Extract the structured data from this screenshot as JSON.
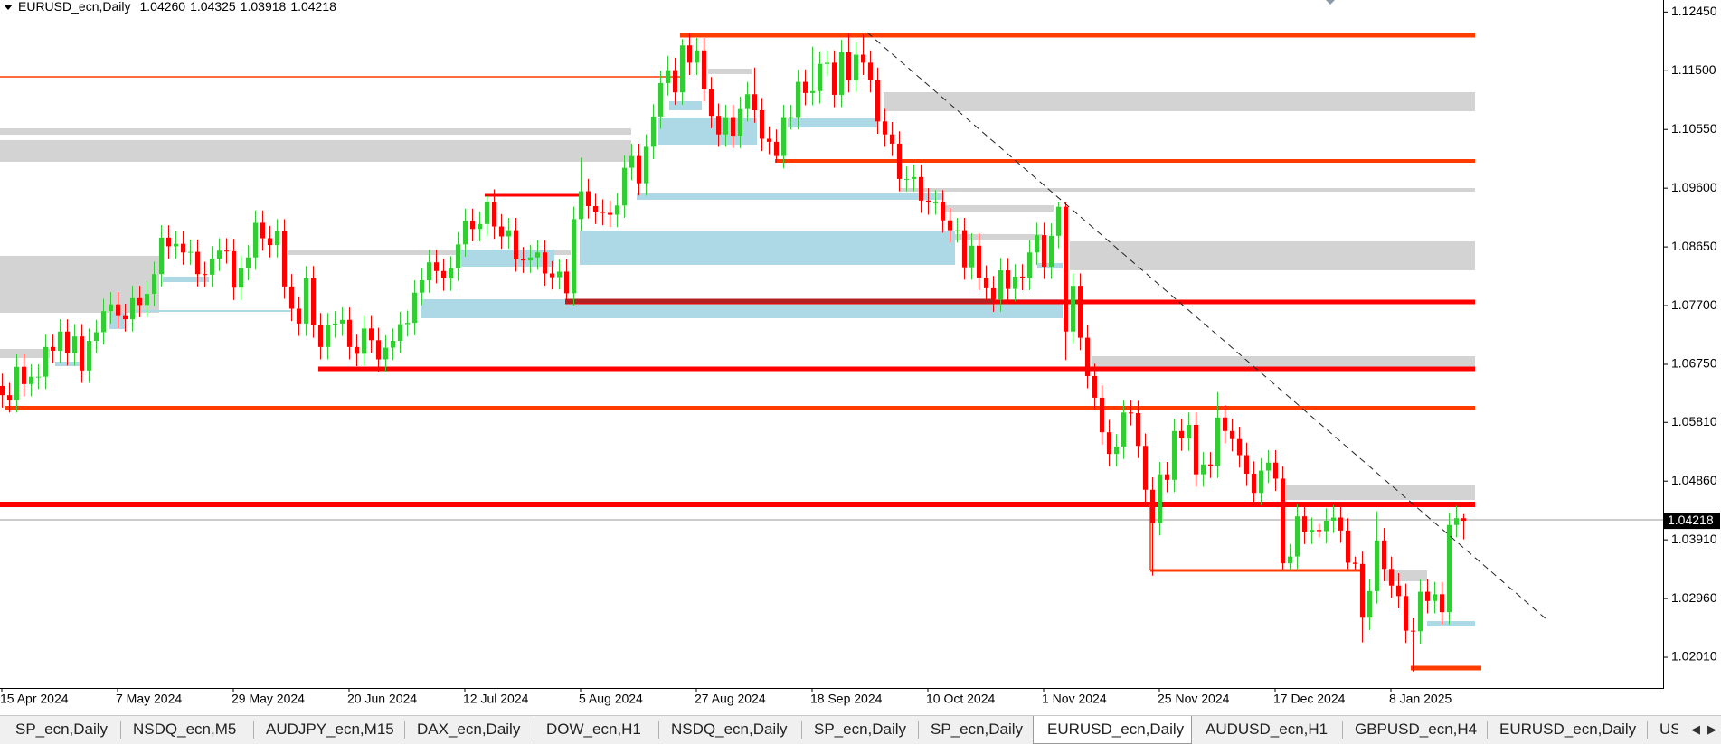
{
  "chart_data": {
    "type": "candlestick",
    "symbol": "EURUSD_ecn,Daily",
    "last_bar_labels": [
      "1.04260",
      "1.04325",
      "1.03918",
      "1.04218"
    ],
    "up_color": "#32cd32",
    "down_color": "#ff0000",
    "ylim": [
      1.01513,
      1.12645
    ],
    "yticks": [
      {
        "value": 1.1245,
        "label": "1.12450"
      },
      {
        "value": 1.115,
        "label": "1.11500"
      },
      {
        "value": 1.1055,
        "label": "1.10550"
      },
      {
        "value": 1.096,
        "label": "1.09600"
      },
      {
        "value": 1.0865,
        "label": "1.08650"
      },
      {
        "value": 1.077,
        "label": "1.07700"
      },
      {
        "value": 1.0675,
        "label": "1.06750"
      },
      {
        "value": 1.0581,
        "label": "1.05810"
      },
      {
        "value": 1.0486,
        "label": "1.04860"
      },
      {
        "value": 1.0391,
        "label": "1.03910"
      },
      {
        "value": 1.0296,
        "label": "1.02960"
      },
      {
        "value": 1.0201,
        "label": "1.02010"
      }
    ],
    "categories": [
      "15 Apr 2024",
      null,
      null,
      null,
      null,
      null,
      null,
      null,
      null,
      null,
      null,
      null,
      null,
      null,
      null,
      null,
      "7 May 2024",
      null,
      null,
      null,
      null,
      null,
      null,
      null,
      null,
      null,
      null,
      null,
      null,
      null,
      null,
      null,
      "29 May 2024",
      null,
      null,
      null,
      null,
      null,
      null,
      null,
      null,
      null,
      null,
      null,
      null,
      null,
      null,
      null,
      "20 Jun 2024",
      null,
      null,
      null,
      null,
      null,
      null,
      null,
      null,
      null,
      null,
      null,
      null,
      null,
      null,
      null,
      "12 Jul 2024",
      null,
      null,
      null,
      null,
      null,
      null,
      null,
      null,
      null,
      null,
      null,
      null,
      null,
      null,
      null,
      "5 Aug 2024",
      null,
      null,
      null,
      null,
      null,
      null,
      null,
      null,
      null,
      null,
      null,
      null,
      null,
      null,
      null,
      "27 Aug 2024",
      null,
      null,
      null,
      null,
      null,
      null,
      null,
      null,
      null,
      null,
      null,
      null,
      null,
      null,
      null,
      "18 Sep 2024",
      null,
      null,
      null,
      null,
      null,
      null,
      null,
      null,
      null,
      null,
      null,
      null,
      null,
      null,
      null,
      "10 Oct 2024",
      null,
      null,
      null,
      null,
      null,
      null,
      null,
      null,
      null,
      null,
      null,
      null,
      null,
      null,
      null,
      "1 Nov 2024",
      null,
      null,
      null,
      null,
      null,
      null,
      null,
      null,
      null,
      null,
      null,
      null,
      null,
      null,
      null,
      "25 Nov 2024",
      null,
      null,
      null,
      null,
      null,
      null,
      null,
      null,
      null,
      null,
      null,
      null,
      null,
      null,
      null,
      "17 Dec 2024",
      null,
      null,
      null,
      null,
      null,
      null,
      null,
      null,
      null,
      null,
      null,
      null,
      null,
      null,
      null,
      "8 Jan 2025",
      null,
      null,
      null,
      null,
      null,
      null,
      null,
      null,
      null,
      null
    ],
    "open": [
      1.064,
      1.0625,
      1.0617,
      1.0671,
      1.0643,
      1.0655,
      1.0655,
      1.0703,
      1.0697,
      1.0728,
      1.0693,
      1.072,
      1.0665,
      1.0713,
      1.0727,
      1.0761,
      1.0772,
      1.0753,
      1.0748,
      1.0782,
      1.0771,
      1.0789,
      1.0821,
      1.088,
      1.0866,
      1.087,
      1.0856,
      1.0857,
      1.0821,
      1.082,
      1.0846,
      1.0859,
      1.0858,
      1.0799,
      1.0831,
      1.0848,
      1.0904,
      1.0879,
      1.0868,
      1.089,
      1.0801,
      1.0765,
      1.0741,
      1.0814,
      1.0738,
      1.0703,
      1.0738,
      1.0741,
      1.0747,
      1.0703,
      1.0692,
      1.0733,
      1.0714,
      1.0683,
      1.0702,
      1.0713,
      1.074,
      1.0742,
      1.0791,
      1.0811,
      1.084,
      1.0826,
      1.0814,
      1.083,
      1.0869,
      1.0907,
      1.0894,
      1.0902,
      1.0938,
      1.0898,
      1.0882,
      1.0892,
      1.0845,
      1.0843,
      1.0848,
      1.0856,
      1.0822,
      1.0816,
      1.0825,
      1.079,
      1.091,
      1.0955,
      1.0931,
      1.0922,
      1.092,
      1.0917,
      1.0932,
      1.0993,
      1.1012,
      1.0968,
      1.1027,
      1.1076,
      1.113,
      1.1151,
      1.1115,
      1.1191,
      1.1163,
      1.1183,
      1.112,
      1.1077,
      1.1047,
      1.1075,
      1.1045,
      1.1088,
      1.1112,
      1.1086,
      1.104,
      1.1035,
      1.1012,
      1.1075,
      1.1075,
      1.1132,
      1.1114,
      1.1117,
      1.1161,
      1.1163,
      1.1111,
      1.118,
      1.1135,
      1.1176,
      1.1163,
      1.1135,
      1.1068,
      1.1047,
      1.1032,
      1.0975,
      1.0975,
      1.0978,
      1.094,
      1.0937,
      1.0937,
      1.0908,
      1.0892,
      1.0892,
      1.0832,
      1.0867,
      1.0815,
      1.0798,
      1.078,
      1.0827,
      1.0797,
      1.0817,
      1.0815,
      1.0856,
      1.0884,
      1.0833,
      1.0883,
      1.093,
      1.0728,
      1.0802,
      1.0718,
      1.0656,
      1.0621,
      1.0565,
      1.053,
      1.0542,
      1.0597,
      1.0596,
      1.0543,
      1.0472,
      1.0418,
      1.0497,
      1.0488,
      1.0567,
      1.0555,
      1.0577,
      1.0497,
      1.0513,
      1.0511,
      1.0589,
      1.0567,
      1.0554,
      1.0528,
      1.0498,
      1.0467,
      1.0503,
      1.0516,
      1.049,
      1.0353,
      1.0364,
      1.0429,
      1.0404,
      1.0407,
      1.0405,
      1.0422,
      1.0427,
      1.0406,
      1.0354,
      1.0352,
      1.0265,
      1.0308,
      1.039,
      1.0344,
      1.0317,
      1.03,
      1.0244,
      1.0243,
      1.0307,
      1.0292,
      1.0303,
      1.0274,
      1.0415,
      1.0426
    ],
    "high": [
      1.066,
      1.0645,
      1.0691,
      1.0691,
      1.0675,
      1.0675,
      1.0723,
      1.0723,
      1.0748,
      1.0748,
      1.074,
      1.074,
      1.0733,
      1.0747,
      1.0781,
      1.0792,
      1.0792,
      1.0773,
      1.0802,
      1.0802,
      1.0809,
      1.0841,
      1.09,
      1.09,
      1.089,
      1.089,
      1.0877,
      1.0877,
      1.0841,
      1.0866,
      1.0879,
      1.0879,
      1.0878,
      1.0851,
      1.0868,
      1.0924,
      1.0924,
      1.0899,
      1.091,
      1.091,
      1.0821,
      1.0785,
      1.0834,
      1.0834,
      1.0758,
      1.0758,
      1.0761,
      1.0767,
      1.0767,
      1.0723,
      1.0753,
      1.0753,
      1.0734,
      1.0722,
      1.0733,
      1.076,
      1.0762,
      1.0811,
      1.0831,
      1.086,
      1.086,
      1.0846,
      1.085,
      1.0889,
      1.0927,
      1.0927,
      1.0922,
      1.0948,
      1.0958,
      1.0918,
      1.0912,
      1.0912,
      1.0865,
      1.0868,
      1.0876,
      1.0876,
      1.0842,
      1.0845,
      1.0845,
      1.093,
      1.1009,
      1.0975,
      1.0951,
      1.0942,
      1.094,
      1.0952,
      1.1013,
      1.1032,
      1.1032,
      1.1047,
      1.1096,
      1.115,
      1.1174,
      1.1171,
      1.1201,
      1.1211,
      1.1203,
      1.1203,
      1.114,
      1.1097,
      1.1095,
      1.1095,
      1.1108,
      1.1132,
      1.1155,
      1.1106,
      1.106,
      1.1055,
      1.1095,
      1.1095,
      1.1152,
      1.1152,
      1.1189,
      1.1181,
      1.1183,
      1.1183,
      1.12,
      1.121,
      1.1196,
      1.1209,
      1.1183,
      1.1155,
      1.1088,
      1.1067,
      1.1052,
      1.0995,
      1.0998,
      1.0998,
      1.096,
      1.0957,
      1.0957,
      1.0928,
      1.0912,
      1.0912,
      1.0887,
      1.0887,
      1.0835,
      1.0818,
      1.0847,
      1.0847,
      1.0837,
      1.0837,
      1.0876,
      1.0904,
      1.0904,
      1.0903,
      1.0937,
      1.0937,
      1.0822,
      1.0822,
      1.0738,
      1.0676,
      1.0641,
      1.0585,
      1.0562,
      1.0617,
      1.0617,
      1.0616,
      1.0563,
      1.0492,
      1.0517,
      1.0517,
      1.0587,
      1.0587,
      1.0597,
      1.0597,
      1.0533,
      1.0533,
      1.063,
      1.0609,
      1.0587,
      1.0574,
      1.0548,
      1.0518,
      1.0523,
      1.0536,
      1.0536,
      1.051,
      1.0384,
      1.0449,
      1.0449,
      1.0427,
      1.0417,
      1.0442,
      1.0447,
      1.0447,
      1.0426,
      1.0364,
      1.0372,
      1.0328,
      1.0437,
      1.041,
      1.0364,
      1.0337,
      1.032,
      1.0264,
      1.0327,
      1.0327,
      1.0323,
      1.0323,
      1.0435,
      1.0446,
      1.04325
    ],
    "low": [
      1.0605,
      1.0597,
      1.0597,
      1.0623,
      1.0623,
      1.0635,
      1.0635,
      1.0677,
      1.0677,
      1.0673,
      1.0673,
      1.0645,
      1.0645,
      1.0693,
      1.0707,
      1.0741,
      1.0733,
      1.0728,
      1.0728,
      1.0751,
      1.0751,
      1.0769,
      1.0801,
      1.0846,
      1.0846,
      1.0836,
      1.0836,
      1.0801,
      1.08,
      1.08,
      1.0826,
      1.0838,
      1.0779,
      1.0779,
      1.0811,
      1.0828,
      1.0859,
      1.0848,
      1.0848,
      1.0781,
      1.0745,
      1.0721,
      1.0721,
      1.0718,
      1.0683,
      1.0683,
      1.0718,
      1.0721,
      1.0683,
      1.0672,
      1.0672,
      1.0694,
      1.0663,
      1.0663,
      1.0682,
      1.0693,
      1.072,
      1.0722,
      1.0771,
      1.0791,
      1.0806,
      1.0794,
      1.0794,
      1.081,
      1.0849,
      1.0874,
      1.0874,
      1.0882,
      1.0878,
      1.0862,
      1.0862,
      1.0825,
      1.0823,
      1.0823,
      1.0828,
      1.0802,
      1.0796,
      1.0796,
      1.0778,
      1.077,
      1.089,
      1.0911,
      1.0902,
      1.09,
      1.0897,
      1.0897,
      1.0912,
      1.0973,
      1.0948,
      1.0948,
      1.1007,
      1.1056,
      1.111,
      1.1095,
      1.1095,
      1.1143,
      1.1143,
      1.11,
      1.1057,
      1.1027,
      1.1027,
      1.1025,
      1.1025,
      1.1068,
      1.1066,
      1.102,
      1.1015,
      1.1002,
      1.0992,
      1.1055,
      1.1055,
      1.1094,
      1.1094,
      1.1097,
      1.1141,
      1.1091,
      1.1091,
      1.1115,
      1.1115,
      1.1143,
      1.1115,
      1.1048,
      1.1027,
      1.1012,
      1.0955,
      1.0955,
      1.0955,
      1.092,
      1.0917,
      1.0917,
      1.0888,
      1.0872,
      1.0872,
      1.0812,
      1.0812,
      1.0795,
      1.0778,
      1.076,
      1.076,
      1.0777,
      1.0777,
      1.0795,
      1.0795,
      1.0836,
      1.0813,
      1.0813,
      1.0863,
      1.0682,
      1.0708,
      1.0698,
      1.0636,
      1.0601,
      1.0545,
      1.051,
      1.051,
      1.0522,
      1.0576,
      1.0523,
      1.0452,
      1.0333,
      1.0398,
      1.0468,
      1.0468,
      1.0535,
      1.0535,
      1.0477,
      1.0477,
      1.0491,
      1.0491,
      1.0547,
      1.0534,
      1.0508,
      1.0478,
      1.0447,
      1.0447,
      1.0483,
      1.047,
      1.0343,
      1.0343,
      1.0344,
      1.0384,
      1.0384,
      1.0395,
      1.0385,
      1.0402,
      1.0386,
      1.0344,
      1.0342,
      1.0225,
      1.0245,
      1.0288,
      1.0324,
      1.0297,
      1.028,
      1.0224,
      1.0178,
      1.0223,
      1.0272,
      1.0272,
      1.0254,
      1.0254,
      1.0395,
      1.03918
    ],
    "close": [
      1.0625,
      1.0617,
      1.0671,
      1.0643,
      1.0655,
      1.0655,
      1.0703,
      1.0697,
      1.0728,
      1.0693,
      1.072,
      1.0665,
      1.0713,
      1.0727,
      1.0761,
      1.0772,
      1.0753,
      1.0748,
      1.0782,
      1.0771,
      1.0789,
      1.0821,
      1.088,
      1.0866,
      1.087,
      1.0856,
      1.0857,
      1.0821,
      1.082,
      1.0846,
      1.0859,
      1.0858,
      1.0799,
      1.0831,
      1.0848,
      1.0904,
      1.0879,
      1.0868,
      1.089,
      1.0801,
      1.0765,
      1.0741,
      1.0814,
      1.0738,
      1.0703,
      1.0738,
      1.0741,
      1.0747,
      1.0703,
      1.0692,
      1.0733,
      1.0714,
      1.0683,
      1.0702,
      1.0713,
      1.074,
      1.0742,
      1.0791,
      1.0811,
      1.084,
      1.0826,
      1.0814,
      1.083,
      1.0869,
      1.0907,
      1.0894,
      1.0902,
      1.0938,
      1.0898,
      1.0882,
      1.0892,
      1.0845,
      1.0843,
      1.0848,
      1.0856,
      1.0822,
      1.0816,
      1.0825,
      1.079,
      1.091,
      1.0955,
      1.0931,
      1.0922,
      1.092,
      1.0917,
      1.0932,
      1.0993,
      1.1012,
      1.0968,
      1.1027,
      1.1076,
      1.113,
      1.1151,
      1.1115,
      1.1191,
      1.1163,
      1.1183,
      1.112,
      1.1077,
      1.1047,
      1.1075,
      1.1045,
      1.1088,
      1.1112,
      1.1086,
      1.104,
      1.1035,
      1.1012,
      1.1075,
      1.1075,
      1.1132,
      1.1114,
      1.1117,
      1.1161,
      1.1163,
      1.1111,
      1.118,
      1.1135,
      1.1176,
      1.1163,
      1.1135,
      1.1068,
      1.1047,
      1.1032,
      1.0975,
      1.0975,
      1.0978,
      1.094,
      1.0937,
      1.0937,
      1.0908,
      1.0892,
      1.0892,
      1.0832,
      1.0867,
      1.0815,
      1.0798,
      1.078,
      1.0827,
      1.0797,
      1.0817,
      1.0815,
      1.0856,
      1.0884,
      1.0833,
      1.0883,
      1.093,
      1.0728,
      1.0802,
      1.0718,
      1.0656,
      1.0621,
      1.0565,
      1.053,
      1.0542,
      1.0597,
      1.0596,
      1.0543,
      1.0472,
      1.0418,
      1.0497,
      1.0488,
      1.0567,
      1.0555,
      1.0577,
      1.0497,
      1.0513,
      1.0511,
      1.0589,
      1.0567,
      1.0554,
      1.0528,
      1.0498,
      1.0467,
      1.0503,
      1.0516,
      1.049,
      1.0353,
      1.0364,
      1.0429,
      1.0404,
      1.0407,
      1.0405,
      1.0422,
      1.0427,
      1.0406,
      1.0354,
      1.0352,
      1.0265,
      1.0308,
      1.039,
      1.0344,
      1.0317,
      1.03,
      1.0244,
      1.0243,
      1.0307,
      1.0292,
      1.0303,
      1.0274,
      1.0415,
      1.0426,
      1.04218
    ]
  },
  "tabs": [
    "SP_ecn,Daily",
    "NSDQ_ecn,M5",
    "AUDJPY_ecn,M15",
    "DAX_ecn,Daily",
    "DOW_ecn,H1",
    "NSDQ_ecn,Daily",
    "SP_ecn,Daily",
    "SP_ecn,Daily",
    "EURUSD_ecn,Daily",
    "AUDUSD_ecn,H1",
    "GBPUSD_ecn,H4",
    "EURUSD_ecn,Daily",
    "USD"
  ],
  "active_tab": 8
}
